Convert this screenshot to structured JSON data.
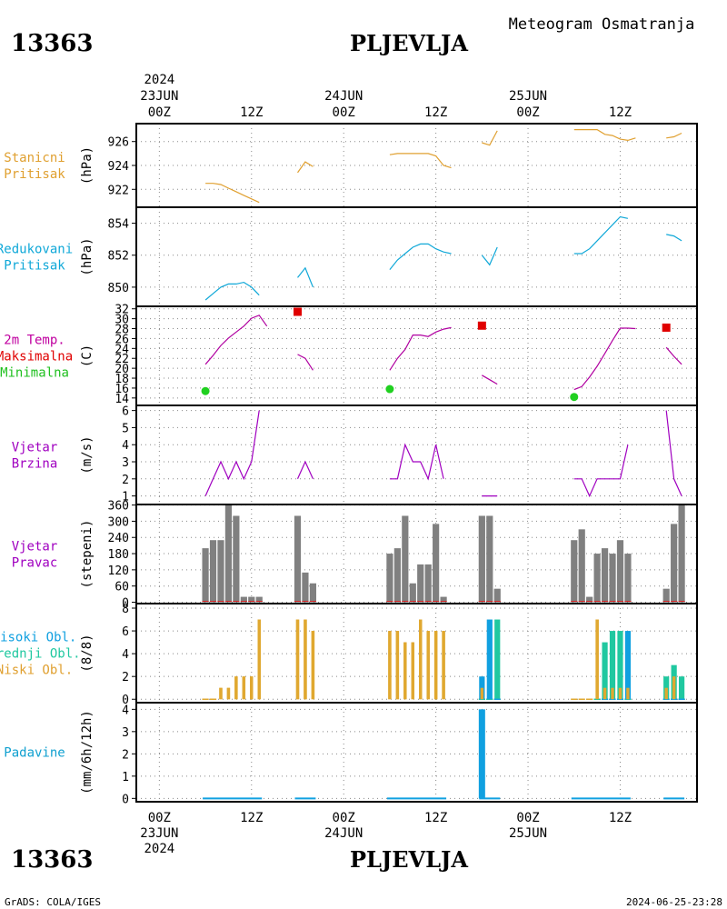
{
  "header": {
    "station_id": "13363",
    "station_name": "PLJEVLJA",
    "product": "Meteogram Osmatranja"
  },
  "footer": {
    "credit": "GrADS: COLA/IGES",
    "timestamp": "2024-06-25-23:28"
  },
  "time_axis": {
    "year": "2024",
    "days": [
      "23JUN",
      "24JUN",
      "25JUN"
    ],
    "ticks": [
      "00Z",
      "12Z",
      "00Z",
      "12Z",
      "00Z",
      "12Z"
    ],
    "tick_hours": [
      0,
      12,
      24,
      36,
      48,
      60
    ],
    "range_hours": [
      -3,
      70
    ]
  },
  "colors": {
    "station_pressure": "#e0a030",
    "reduced_pressure": "#10a8d8",
    "temperature": "#b000a0",
    "tmax": "#e00000",
    "tmin": "#20d020",
    "wind": "#a000c0",
    "winddir": "#808080",
    "cloud_high": "#10a0e0",
    "cloud_mid": "#20c8a0",
    "cloud_low": "#e0a830",
    "precip": "#10a0e0",
    "precip_label": "#10a0d0"
  },
  "panels": [
    {
      "id": "station-pressure",
      "labels": [
        "Stanicni",
        "Pritisak"
      ],
      "label_colors": [
        "#e0a030",
        "#e0a030"
      ],
      "unit": "(hPa)"
    },
    {
      "id": "reduced-pressure",
      "labels": [
        "Redukovani",
        "Pritisak"
      ],
      "label_colors": [
        "#10a8d8",
        "#10a8d8"
      ],
      "unit": "(hPa)"
    },
    {
      "id": "temperature",
      "labels": [
        "2m Temp.",
        "Maksimalna",
        "Minimalna"
      ],
      "label_colors": [
        "#c000a0",
        "#e00000",
        "#20c020"
      ],
      "unit": "(C)"
    },
    {
      "id": "wind-speed",
      "labels": [
        "Vjetar",
        "Brzina"
      ],
      "label_colors": [
        "#a000c0",
        "#a000c0"
      ],
      "unit": "(m/s)"
    },
    {
      "id": "wind-direction",
      "labels": [
        "Vjetar",
        "Pravac"
      ],
      "label_colors": [
        "#a000c0",
        "#a000c0"
      ],
      "unit": "(stepeni)"
    },
    {
      "id": "clouds",
      "labels": [
        "Visoki Obl.",
        "Srednji Obl.",
        "Niski Obl."
      ],
      "label_colors": [
        "#10a0e0",
        "#20c8a0",
        "#e0a030"
      ],
      "unit": "(8/8)"
    },
    {
      "id": "precipitation",
      "labels": [
        "Padavine"
      ],
      "label_colors": [
        "#10a0d0"
      ],
      "unit": "(mm/6h/12h)"
    }
  ],
  "chart_data": {
    "type": "line",
    "x_units": "hours since 23JUN2024 00Z",
    "station_pressure": {
      "ylim": [
        920.5,
        927.5
      ],
      "yticks": [
        922,
        924,
        926
      ],
      "segments": [
        [
          [
            6,
            922.5
          ],
          [
            7,
            922.5
          ],
          [
            8,
            922.4
          ],
          [
            9,
            922.1
          ],
          [
            10,
            921.8
          ],
          [
            11,
            921.5
          ],
          [
            12,
            921.2
          ],
          [
            13,
            920.9
          ]
        ],
        [
          [
            18,
            923.4
          ],
          [
            19,
            924.3
          ],
          [
            20,
            923.9
          ]
        ],
        [
          [
            30,
            924.9
          ],
          [
            31,
            925.0
          ],
          [
            32,
            925.0
          ],
          [
            33,
            925.0
          ],
          [
            34,
            925.0
          ],
          [
            35,
            925.0
          ],
          [
            36,
            924.8
          ],
          [
            37,
            924.0
          ],
          [
            38,
            923.8
          ]
        ],
        [
          [
            42,
            925.9
          ],
          [
            43,
            925.7
          ],
          [
            44,
            926.9
          ]
        ],
        [
          [
            54,
            927.0
          ],
          [
            55,
            927.0
          ],
          [
            56,
            927.0
          ],
          [
            57,
            927.0
          ],
          [
            58,
            926.6
          ],
          [
            59,
            926.5
          ],
          [
            60,
            926.2
          ],
          [
            61,
            926.1
          ],
          [
            62,
            926.3
          ]
        ],
        [
          [
            66,
            926.3
          ],
          [
            67,
            926.4
          ],
          [
            68,
            926.7
          ]
        ]
      ]
    },
    "reduced_pressure": {
      "ylim": [
        848.8,
        855.0
      ],
      "yticks": [
        850,
        852,
        854
      ],
      "segments": [
        [
          [
            6,
            849.2
          ],
          [
            7,
            849.6
          ],
          [
            8,
            850.0
          ],
          [
            9,
            850.2
          ],
          [
            10,
            850.2
          ],
          [
            11,
            850.3
          ],
          [
            12,
            850.0
          ],
          [
            13,
            849.5
          ]
        ],
        [
          [
            18,
            850.6
          ],
          [
            19,
            851.2
          ],
          [
            20,
            850.0
          ]
        ],
        [
          [
            30,
            851.1
          ],
          [
            31,
            851.7
          ],
          [
            32,
            852.1
          ],
          [
            33,
            852.5
          ],
          [
            34,
            852.7
          ],
          [
            35,
            852.7
          ],
          [
            36,
            852.4
          ],
          [
            37,
            852.2
          ],
          [
            38,
            852.1
          ]
        ],
        [
          [
            42,
            852.0
          ],
          [
            43,
            851.4
          ],
          [
            44,
            852.5
          ]
        ],
        [
          [
            54,
            852.1
          ],
          [
            55,
            852.1
          ],
          [
            56,
            852.4
          ],
          [
            57,
            852.9
          ],
          [
            58,
            853.4
          ],
          [
            59,
            853.9
          ],
          [
            60,
            854.4
          ],
          [
            61,
            854.3
          ]
        ],
        [
          [
            66,
            853.3
          ],
          [
            67,
            853.2
          ],
          [
            68,
            852.9
          ]
        ]
      ]
    },
    "temperature": {
      "ylim": [
        12.5,
        32.5
      ],
      "yticks": [
        14,
        16,
        18,
        20,
        22,
        24,
        26,
        28,
        30,
        32
      ],
      "segments": [
        [
          [
            6,
            20.8
          ],
          [
            7,
            22.6
          ],
          [
            8,
            24.6
          ],
          [
            9,
            26.1
          ],
          [
            10,
            27.3
          ],
          [
            11,
            28.5
          ],
          [
            12,
            30.1
          ],
          [
            13,
            30.7
          ],
          [
            14,
            28.5
          ]
        ],
        [
          [
            18,
            22.8
          ],
          [
            19,
            22.0
          ],
          [
            20,
            19.6
          ]
        ],
        [
          [
            30,
            19.6
          ],
          [
            31,
            22.0
          ],
          [
            32,
            23.8
          ],
          [
            33,
            26.7
          ],
          [
            34,
            26.7
          ],
          [
            35,
            26.4
          ],
          [
            36,
            27.3
          ],
          [
            37,
            27.9
          ],
          [
            38,
            28.2
          ]
        ],
        [
          [
            42,
            18.6
          ],
          [
            43,
            17.7
          ],
          [
            44,
            16.8
          ]
        ],
        [
          [
            54,
            15.7
          ],
          [
            55,
            16.3
          ],
          [
            56,
            18.2
          ],
          [
            57,
            20.4
          ],
          [
            58,
            23.0
          ],
          [
            59,
            25.6
          ],
          [
            60,
            28.1
          ],
          [
            61,
            28.1
          ],
          [
            62,
            28.0
          ]
        ],
        [
          [
            66,
            24.2
          ],
          [
            67,
            22.4
          ],
          [
            68,
            20.8
          ]
        ]
      ],
      "tmax": [
        [
          18,
          31.4
        ],
        [
          42,
          28.6
        ],
        [
          66,
          28.2
        ]
      ],
      "tmin": [
        [
          6,
          15.4
        ],
        [
          30,
          15.8
        ],
        [
          54,
          14.2
        ]
      ]
    },
    "wind_speed": {
      "ylim": [
        0.5,
        6.3
      ],
      "yticks": [
        1,
        2,
        3,
        4,
        5,
        6
      ],
      "segments": [
        [
          [
            6,
            1
          ],
          [
            7,
            2
          ],
          [
            8,
            3
          ],
          [
            9,
            2
          ],
          [
            10,
            3
          ],
          [
            11,
            2
          ],
          [
            12,
            3
          ],
          [
            13,
            6
          ]
        ],
        [
          [
            18,
            2
          ],
          [
            19,
            3
          ],
          [
            20,
            2
          ]
        ],
        [
          [
            30,
            2
          ],
          [
            31,
            2
          ],
          [
            32,
            4
          ],
          [
            33,
            3
          ],
          [
            34,
            3
          ],
          [
            35,
            2
          ],
          [
            36,
            4
          ],
          [
            37,
            2
          ]
        ],
        [
          [
            42,
            1
          ],
          [
            43,
            1
          ],
          [
            44,
            1
          ]
        ],
        [
          [
            54,
            2
          ],
          [
            55,
            2
          ],
          [
            56,
            1
          ],
          [
            57,
            2
          ],
          [
            58,
            2
          ],
          [
            59,
            2
          ],
          [
            60,
            2
          ],
          [
            61,
            4
          ]
        ],
        [
          [
            66,
            6
          ],
          [
            67,
            2
          ],
          [
            68,
            1
          ]
        ]
      ]
    },
    "wind_direction": {
      "ylim": [
        -5,
        362
      ],
      "yticks": [
        0,
        60,
        120,
        180,
        240,
        300,
        360
      ],
      "bars": [
        [
          6,
          200
        ],
        [
          7,
          230
        ],
        [
          8,
          230
        ],
        [
          9,
          360
        ],
        [
          10,
          320
        ],
        [
          11,
          20
        ],
        [
          12,
          20
        ],
        [
          13,
          20
        ],
        [
          18,
          320
        ],
        [
          19,
          110
        ],
        [
          20,
          70
        ],
        [
          30,
          180
        ],
        [
          31,
          200
        ],
        [
          32,
          320
        ],
        [
          33,
          70
        ],
        [
          34,
          140
        ],
        [
          35,
          140
        ],
        [
          36,
          290
        ],
        [
          37,
          20
        ],
        [
          42,
          320
        ],
        [
          43,
          320
        ],
        [
          44,
          50
        ],
        [
          54,
          230
        ],
        [
          55,
          270
        ],
        [
          56,
          20
        ],
        [
          57,
          180
        ],
        [
          58,
          200
        ],
        [
          59,
          180
        ],
        [
          60,
          230
        ],
        [
          61,
          180
        ],
        [
          66,
          50
        ],
        [
          67,
          290
        ],
        [
          68,
          360
        ]
      ]
    },
    "clouds": {
      "ylim": [
        -0.3,
        8.4
      ],
      "yticks": [
        0,
        2,
        4,
        6,
        8
      ],
      "low": [
        [
          6,
          0
        ],
        [
          7,
          0
        ],
        [
          8,
          1
        ],
        [
          9,
          1
        ],
        [
          10,
          2
        ],
        [
          11,
          2
        ],
        [
          12,
          2
        ],
        [
          13,
          7
        ],
        [
          18,
          7
        ],
        [
          19,
          7
        ],
        [
          20,
          6
        ],
        [
          30,
          6
        ],
        [
          31,
          6
        ],
        [
          32,
          5
        ],
        [
          33,
          5
        ],
        [
          34,
          7
        ],
        [
          35,
          6
        ],
        [
          36,
          6
        ],
        [
          37,
          6
        ],
        [
          42,
          1
        ],
        [
          43,
          0
        ],
        [
          44,
          0
        ],
        [
          54,
          0
        ],
        [
          55,
          0
        ],
        [
          56,
          0
        ],
        [
          57,
          7
        ],
        [
          58,
          1
        ],
        [
          59,
          1
        ],
        [
          60,
          1
        ],
        [
          61,
          1
        ],
        [
          66,
          1
        ],
        [
          67,
          2
        ],
        [
          68,
          0
        ]
      ],
      "mid": [
        [
          42,
          0
        ],
        [
          43,
          0
        ],
        [
          44,
          7
        ],
        [
          57,
          0
        ],
        [
          58,
          5
        ],
        [
          59,
          6
        ],
        [
          60,
          6
        ],
        [
          61,
          0
        ],
        [
          66,
          2
        ],
        [
          67,
          3
        ],
        [
          68,
          2
        ]
      ],
      "high": [
        [
          42,
          2
        ],
        [
          43,
          7
        ],
        [
          44,
          0
        ],
        [
          58,
          0
        ],
        [
          59,
          0
        ],
        [
          60,
          0
        ],
        [
          61,
          6
        ],
        [
          66,
          0
        ],
        [
          67,
          0
        ],
        [
          68,
          0
        ]
      ]
    },
    "precipitation": {
      "ylim": [
        -0.15,
        4.3
      ],
      "yticks": [
        0,
        1,
        2,
        3,
        4
      ],
      "bars": [
        [
          42,
          4.0
        ]
      ],
      "trace_segments": [
        [
          6,
          13
        ],
        [
          18,
          20
        ],
        [
          30,
          37
        ],
        [
          42,
          44
        ],
        [
          54,
          61
        ],
        [
          66,
          68
        ]
      ]
    }
  }
}
